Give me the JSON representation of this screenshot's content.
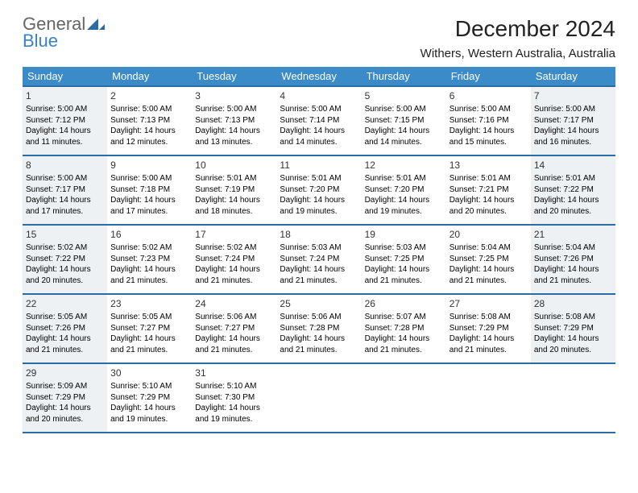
{
  "logo": {
    "line1": "General",
    "line2": "Blue"
  },
  "title": "December 2024",
  "location": "Withers, Western Australia, Australia",
  "header_bg": "#3b8bc9",
  "border_color": "#2b6ca3",
  "shade_bg": "#eef1f4",
  "weekdays": [
    "Sunday",
    "Monday",
    "Tuesday",
    "Wednesday",
    "Thursday",
    "Friday",
    "Saturday"
  ],
  "weeks": [
    [
      {
        "day": 1,
        "shade": true,
        "sunrise": "Sunrise: 5:00 AM",
        "sunset": "Sunset: 7:12 PM",
        "daylight": "Daylight: 14 hours and 11 minutes."
      },
      {
        "day": 2,
        "sunrise": "Sunrise: 5:00 AM",
        "sunset": "Sunset: 7:13 PM",
        "daylight": "Daylight: 14 hours and 12 minutes."
      },
      {
        "day": 3,
        "sunrise": "Sunrise: 5:00 AM",
        "sunset": "Sunset: 7:13 PM",
        "daylight": "Daylight: 14 hours and 13 minutes."
      },
      {
        "day": 4,
        "sunrise": "Sunrise: 5:00 AM",
        "sunset": "Sunset: 7:14 PM",
        "daylight": "Daylight: 14 hours and 14 minutes."
      },
      {
        "day": 5,
        "sunrise": "Sunrise: 5:00 AM",
        "sunset": "Sunset: 7:15 PM",
        "daylight": "Daylight: 14 hours and 14 minutes."
      },
      {
        "day": 6,
        "sunrise": "Sunrise: 5:00 AM",
        "sunset": "Sunset: 7:16 PM",
        "daylight": "Daylight: 14 hours and 15 minutes."
      },
      {
        "day": 7,
        "shade": true,
        "sunrise": "Sunrise: 5:00 AM",
        "sunset": "Sunset: 7:17 PM",
        "daylight": "Daylight: 14 hours and 16 minutes."
      }
    ],
    [
      {
        "day": 8,
        "shade": true,
        "sunrise": "Sunrise: 5:00 AM",
        "sunset": "Sunset: 7:17 PM",
        "daylight": "Daylight: 14 hours and 17 minutes."
      },
      {
        "day": 9,
        "sunrise": "Sunrise: 5:00 AM",
        "sunset": "Sunset: 7:18 PM",
        "daylight": "Daylight: 14 hours and 17 minutes."
      },
      {
        "day": 10,
        "sunrise": "Sunrise: 5:01 AM",
        "sunset": "Sunset: 7:19 PM",
        "daylight": "Daylight: 14 hours and 18 minutes."
      },
      {
        "day": 11,
        "sunrise": "Sunrise: 5:01 AM",
        "sunset": "Sunset: 7:20 PM",
        "daylight": "Daylight: 14 hours and 19 minutes."
      },
      {
        "day": 12,
        "sunrise": "Sunrise: 5:01 AM",
        "sunset": "Sunset: 7:20 PM",
        "daylight": "Daylight: 14 hours and 19 minutes."
      },
      {
        "day": 13,
        "sunrise": "Sunrise: 5:01 AM",
        "sunset": "Sunset: 7:21 PM",
        "daylight": "Daylight: 14 hours and 20 minutes."
      },
      {
        "day": 14,
        "shade": true,
        "sunrise": "Sunrise: 5:01 AM",
        "sunset": "Sunset: 7:22 PM",
        "daylight": "Daylight: 14 hours and 20 minutes."
      }
    ],
    [
      {
        "day": 15,
        "shade": true,
        "sunrise": "Sunrise: 5:02 AM",
        "sunset": "Sunset: 7:22 PM",
        "daylight": "Daylight: 14 hours and 20 minutes."
      },
      {
        "day": 16,
        "sunrise": "Sunrise: 5:02 AM",
        "sunset": "Sunset: 7:23 PM",
        "daylight": "Daylight: 14 hours and 21 minutes."
      },
      {
        "day": 17,
        "sunrise": "Sunrise: 5:02 AM",
        "sunset": "Sunset: 7:24 PM",
        "daylight": "Daylight: 14 hours and 21 minutes."
      },
      {
        "day": 18,
        "sunrise": "Sunrise: 5:03 AM",
        "sunset": "Sunset: 7:24 PM",
        "daylight": "Daylight: 14 hours and 21 minutes."
      },
      {
        "day": 19,
        "sunrise": "Sunrise: 5:03 AM",
        "sunset": "Sunset: 7:25 PM",
        "daylight": "Daylight: 14 hours and 21 minutes."
      },
      {
        "day": 20,
        "sunrise": "Sunrise: 5:04 AM",
        "sunset": "Sunset: 7:25 PM",
        "daylight": "Daylight: 14 hours and 21 minutes."
      },
      {
        "day": 21,
        "shade": true,
        "sunrise": "Sunrise: 5:04 AM",
        "sunset": "Sunset: 7:26 PM",
        "daylight": "Daylight: 14 hours and 21 minutes."
      }
    ],
    [
      {
        "day": 22,
        "shade": true,
        "sunrise": "Sunrise: 5:05 AM",
        "sunset": "Sunset: 7:26 PM",
        "daylight": "Daylight: 14 hours and 21 minutes."
      },
      {
        "day": 23,
        "sunrise": "Sunrise: 5:05 AM",
        "sunset": "Sunset: 7:27 PM",
        "daylight": "Daylight: 14 hours and 21 minutes."
      },
      {
        "day": 24,
        "sunrise": "Sunrise: 5:06 AM",
        "sunset": "Sunset: 7:27 PM",
        "daylight": "Daylight: 14 hours and 21 minutes."
      },
      {
        "day": 25,
        "sunrise": "Sunrise: 5:06 AM",
        "sunset": "Sunset: 7:28 PM",
        "daylight": "Daylight: 14 hours and 21 minutes."
      },
      {
        "day": 26,
        "sunrise": "Sunrise: 5:07 AM",
        "sunset": "Sunset: 7:28 PM",
        "daylight": "Daylight: 14 hours and 21 minutes."
      },
      {
        "day": 27,
        "sunrise": "Sunrise: 5:08 AM",
        "sunset": "Sunset: 7:29 PM",
        "daylight": "Daylight: 14 hours and 21 minutes."
      },
      {
        "day": 28,
        "shade": true,
        "sunrise": "Sunrise: 5:08 AM",
        "sunset": "Sunset: 7:29 PM",
        "daylight": "Daylight: 14 hours and 20 minutes."
      }
    ],
    [
      {
        "day": 29,
        "shade": true,
        "sunrise": "Sunrise: 5:09 AM",
        "sunset": "Sunset: 7:29 PM",
        "daylight": "Daylight: 14 hours and 20 minutes."
      },
      {
        "day": 30,
        "sunrise": "Sunrise: 5:10 AM",
        "sunset": "Sunset: 7:29 PM",
        "daylight": "Daylight: 14 hours and 19 minutes."
      },
      {
        "day": 31,
        "sunrise": "Sunrise: 5:10 AM",
        "sunset": "Sunset: 7:30 PM",
        "daylight": "Daylight: 14 hours and 19 minutes."
      },
      null,
      null,
      null,
      null
    ]
  ]
}
